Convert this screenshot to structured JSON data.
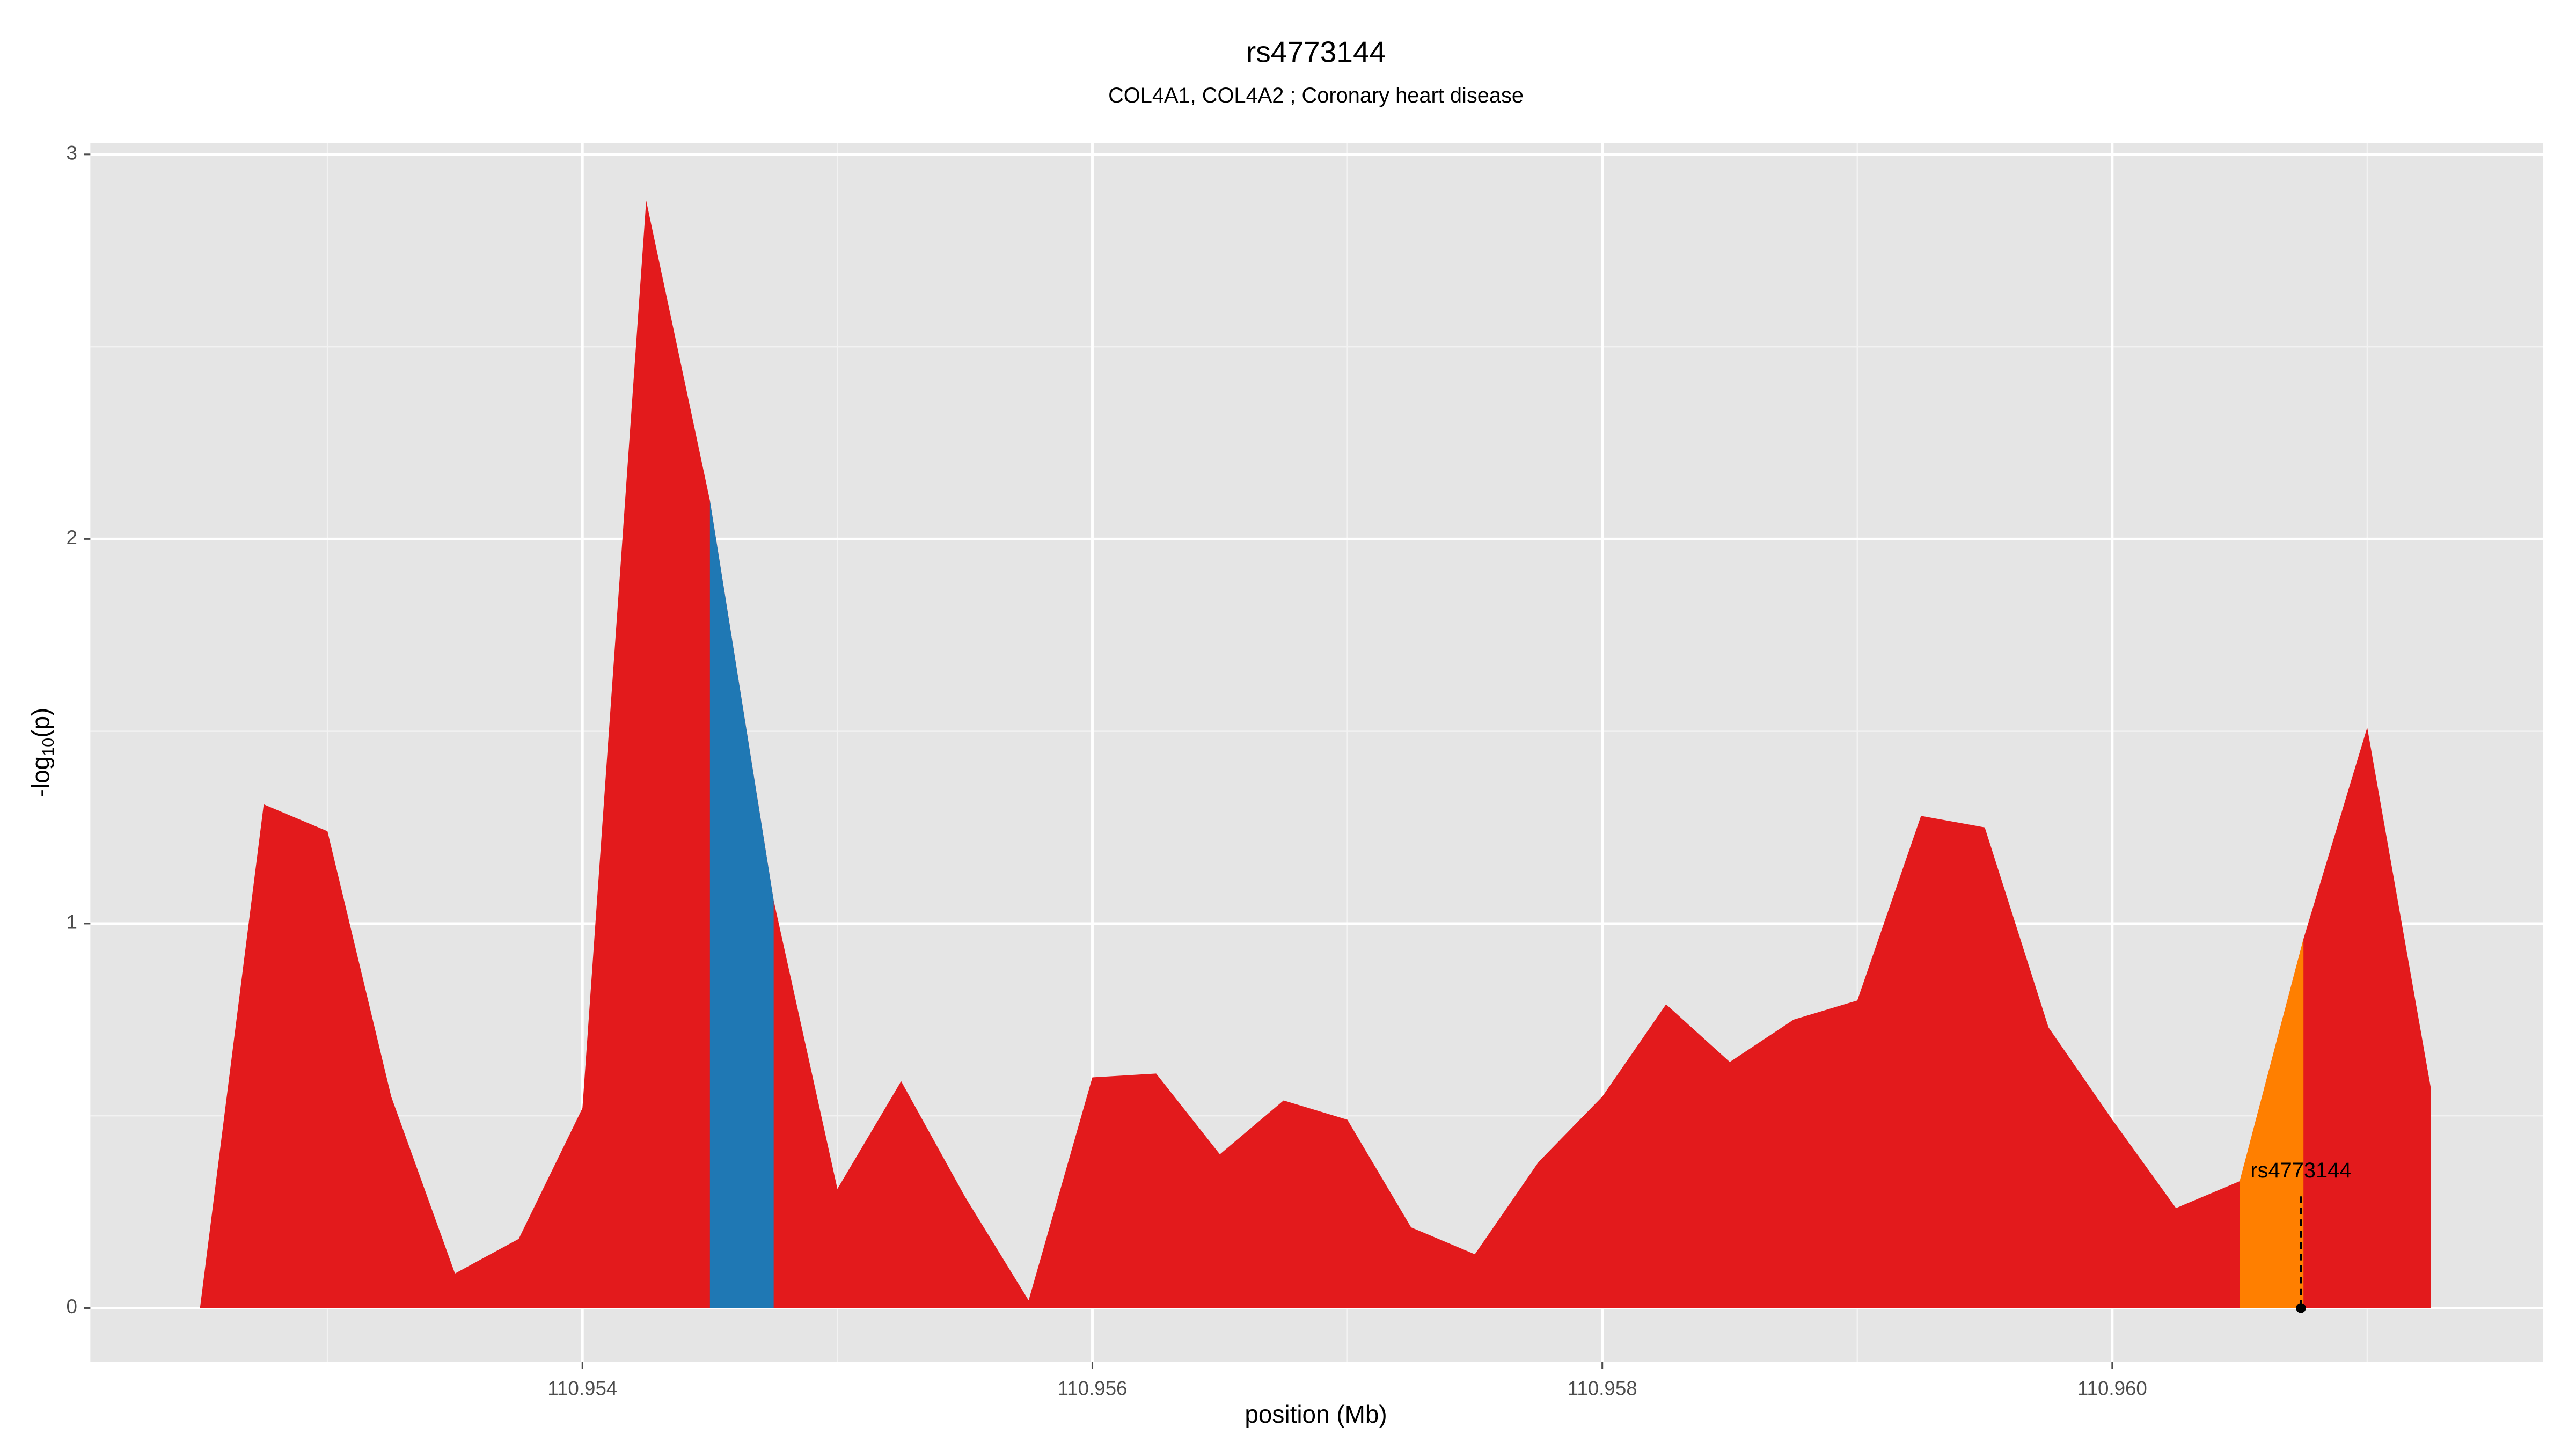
{
  "chart_data": {
    "type": "area",
    "title": "rs4773144",
    "subtitle": "COL4A1, COL4A2 ; Coronary heart disease",
    "xlabel": "position (Mb)",
    "ylabel": {
      "base": "-log",
      "subscript": "10",
      "rest": "(p)"
    },
    "x": [
      110.9525,
      110.95275,
      110.953,
      110.95325,
      110.9535,
      110.95375,
      110.954,
      110.95425,
      110.9545,
      110.95475,
      110.955,
      110.95525,
      110.9555,
      110.95575,
      110.956,
      110.95625,
      110.9565,
      110.95675,
      110.957,
      110.95725,
      110.9575,
      110.95775,
      110.958,
      110.95825,
      110.9585,
      110.95875,
      110.959,
      110.95925,
      110.9595,
      110.95975,
      110.96,
      110.96025,
      110.9605,
      110.96075,
      110.961,
      110.96125
    ],
    "values": [
      0,
      1.31,
      1.24,
      0.55,
      0.09,
      0.18,
      0.52,
      2.88,
      2.1,
      1.06,
      0.31,
      0.59,
      0.29,
      0.02,
      0.6,
      0.61,
      0.4,
      0.54,
      0.49,
      0.21,
      0.14,
      0.38,
      0.55,
      0.79,
      0.64,
      0.75,
      0.8,
      1.28,
      1.25,
      0.73,
      0.49,
      0.26,
      0.33,
      0.96,
      1.51,
      0.57
    ],
    "color": "#e31a1c",
    "highlight_ranges": [
      {
        "xlim": [
          110.9545,
          110.95475
        ],
        "color": "#1f78b4"
      },
      {
        "xlim": [
          110.9605,
          110.96075
        ],
        "color": "#ff7f00"
      }
    ],
    "annotation": {
      "text": "rs4773144",
      "x": 110.96074,
      "y": 0
    },
    "xlim": [
      110.95207,
      110.96169
    ],
    "ylim": [
      -0.14,
      3.03
    ],
    "xticks": [
      110.954,
      110.956,
      110.958,
      {
        "value": 110.96,
        "label": "110.960"
      }
    ],
    "xminor": [
      110.953,
      110.955,
      110.957,
      110.959,
      110.961
    ],
    "yticks": [
      0,
      1,
      2,
      3
    ],
    "yminor": [
      0.5,
      1.5,
      2.5
    ],
    "grid": true
  }
}
